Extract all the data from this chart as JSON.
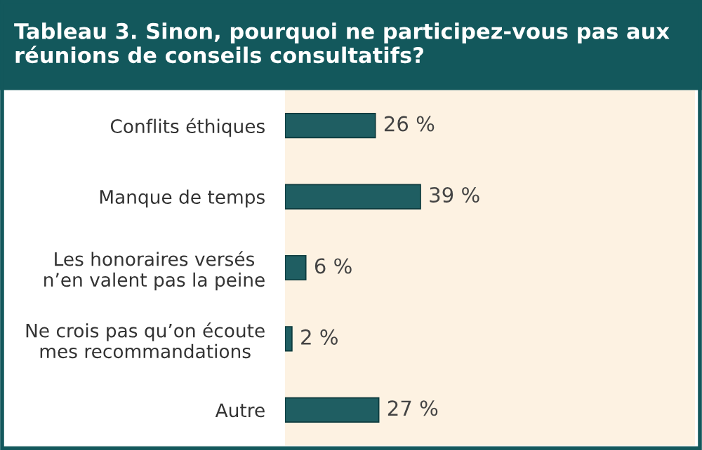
{
  "chart_data": {
    "type": "bar",
    "orientation": "horizontal",
    "title": "Tableau 3. Sinon, pourquoi ne participez-vous pas aux réunions de conseils consultatifs?",
    "categories": [
      "Conflits éthiques",
      "Manque de temps",
      "Les honoraires versés\nn’en valent pas la peine",
      "Ne crois pas qu’on écoute\nmes recommandations",
      "Autre"
    ],
    "values": [
      26,
      39,
      6,
      2,
      27
    ],
    "value_labels": [
      "26 %",
      "39 %",
      "6 %",
      "2 %",
      "27 %"
    ],
    "color": "#1f5e62",
    "xlim": [
      0,
      118
    ],
    "tick_labels": "y",
    "grid": false,
    "legend": false
  }
}
